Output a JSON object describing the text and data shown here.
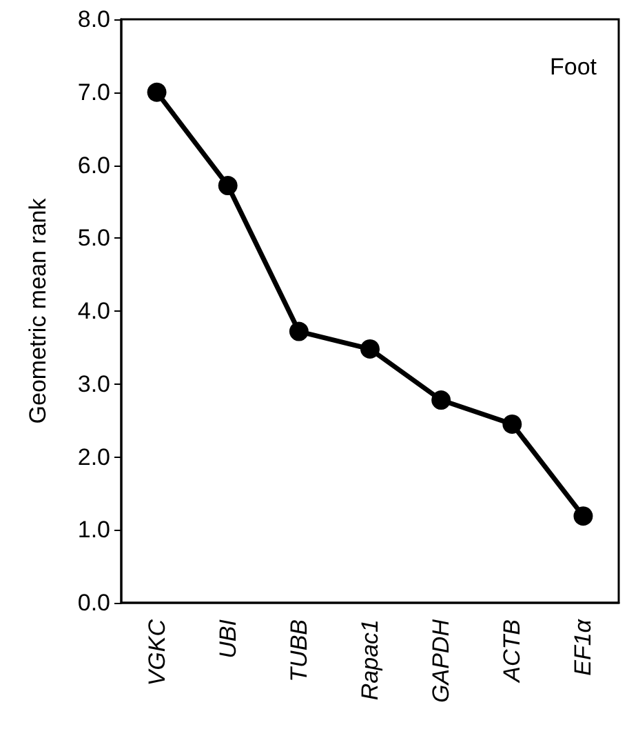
{
  "chart_data": {
    "type": "line",
    "ylabel": "Geometric mean rank",
    "annotations": [
      "Foot"
    ],
    "categories": [
      "VGKC",
      "UBI",
      "TUBB",
      "Rapac1",
      "GAPDH",
      "ACTB",
      "EF1α"
    ],
    "series": [
      {
        "color": "#000000",
        "values": [
          7.0,
          5.72,
          3.72,
          3.48,
          2.78,
          2.45,
          1.19
        ]
      }
    ],
    "ylim": [
      0,
      8
    ],
    "yticks": [
      {
        "value": 0,
        "label": "0.0"
      },
      {
        "value": 1,
        "label": "1.0"
      },
      {
        "value": 2,
        "label": "2.0"
      },
      {
        "value": 3,
        "label": "3.0"
      },
      {
        "value": 4,
        "label": "4.0"
      },
      {
        "value": 5,
        "label": "5.0"
      },
      {
        "value": 6,
        "label": "6.0"
      },
      {
        "value": 7,
        "label": "7.0"
      },
      {
        "value": 8,
        "label": "8.0"
      }
    ],
    "grid": false,
    "marker": "circle",
    "line_style": "solid"
  }
}
